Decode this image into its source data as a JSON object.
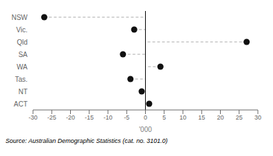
{
  "chart_data": {
    "type": "dot",
    "categories": [
      "NSW",
      "Vic.",
      "Qld",
      "SA",
      "WA",
      "Tas.",
      "NT",
      "ACT"
    ],
    "values": [
      -27,
      -3,
      27,
      -6,
      4,
      -4,
      -1,
      1
    ],
    "color": "#111111",
    "marker": "circle",
    "line_style": "dashed",
    "xlim": [
      -30,
      30
    ],
    "xticks": [
      -30,
      -25,
      -20,
      -15,
      -10,
      -5,
      0,
      5,
      10,
      15,
      20,
      25,
      30
    ],
    "xlabel": "'000",
    "annotations": [
      "Source: Australian Demographic Statistics (cat. no. 3101.0)"
    ]
  }
}
